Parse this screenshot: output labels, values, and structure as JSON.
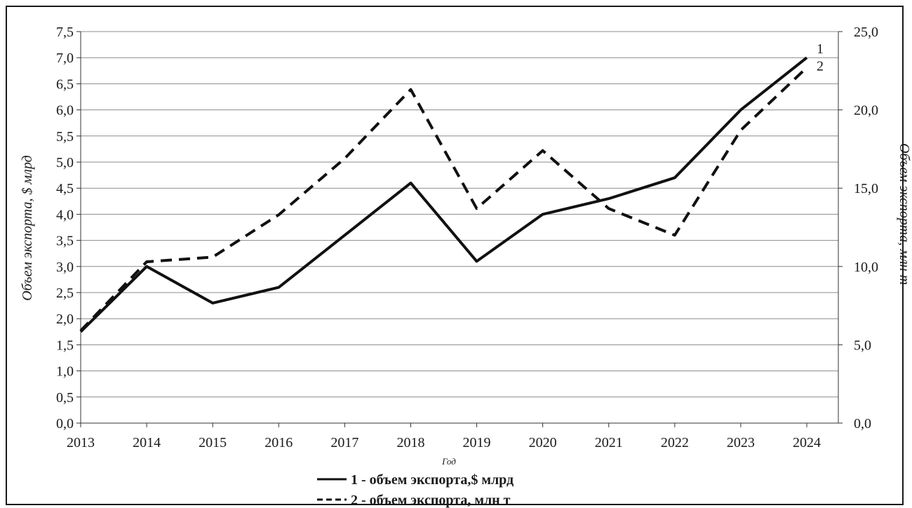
{
  "chart_data": {
    "type": "line",
    "title": "",
    "xlabel": "Год",
    "ylabel_left": "Объем экспорта, $ млрд",
    "ylabel_right": "Объем экспорта, млн т",
    "x": [
      "2013",
      "2014",
      "2015",
      "2016",
      "2017",
      "2018",
      "2019",
      "2020",
      "2021",
      "2022",
      "2023",
      "2024"
    ],
    "y_left": {
      "min": 0,
      "max": 7.5,
      "step": 0.5,
      "ticks": [
        "0,0",
        "0,5",
        "1,0",
        "1,5",
        "2,0",
        "2,5",
        "3,0",
        "3,5",
        "4,0",
        "4,5",
        "5,0",
        "5,5",
        "6,0",
        "6,5",
        "7,0",
        "7,5"
      ]
    },
    "y_right": {
      "min": 0,
      "max": 25,
      "step": 5,
      "ticks": [
        "0,0",
        "5,0",
        "10,0",
        "15,0",
        "20,0",
        "25,0"
      ]
    },
    "grid": true,
    "legend_position": "bottom",
    "series": [
      {
        "name": "1 - объем экспорта,$ млрд",
        "end_label": "1",
        "axis": "left",
        "style": "solid",
        "values": [
          1.75,
          3.0,
          2.3,
          2.6,
          3.6,
          4.6,
          3.1,
          4.0,
          4.3,
          4.7,
          6.0,
          7.0
        ]
      },
      {
        "name": "2 - объем экспорта, млн т",
        "end_label": "2",
        "axis": "right",
        "style": "dashed",
        "values": [
          5.9,
          10.3,
          10.6,
          13.3,
          16.9,
          21.3,
          13.7,
          17.4,
          13.7,
          12.0,
          18.7,
          22.7
        ]
      }
    ],
    "colors": {
      "line": "#111111",
      "grid": "#8c8c8c",
      "axis": "#333333"
    }
  }
}
